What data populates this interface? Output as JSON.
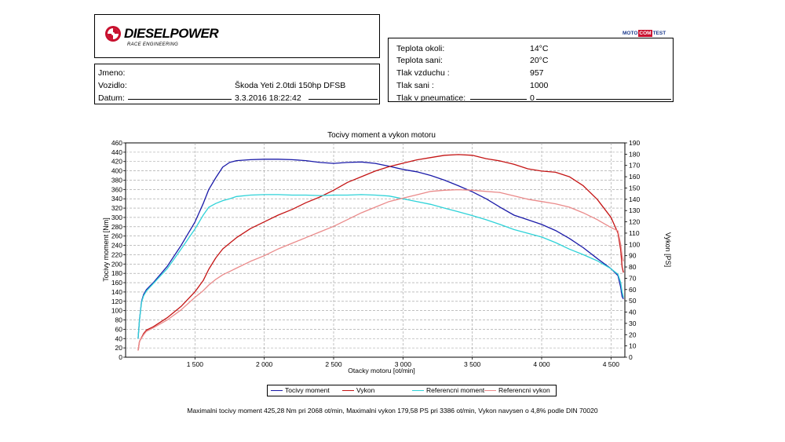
{
  "brand": {
    "name": "DIESELPOWER",
    "tagline": "RACE ENGINEERING",
    "badge": [
      "MOTO",
      "COM",
      "TEST"
    ]
  },
  "info": {
    "rows": [
      {
        "label": "Jmeno:",
        "value": ""
      },
      {
        "label": "Vozidlo:",
        "value": "Škoda Yeti 2.0tdi 150hp DFSB"
      },
      {
        "label": "Datum:",
        "value": "3.3.2016 18:22:42"
      }
    ]
  },
  "conditions": {
    "rows": [
      {
        "label": "Teplota okoli:",
        "value": "14°C"
      },
      {
        "label": "Teplota sani:",
        "value": "20°C"
      },
      {
        "label": "Tlak vzduchu :",
        "value": "957"
      },
      {
        "label": "Tlak sani :",
        "value": "1000"
      },
      {
        "label": "Tlak v pneumatice:",
        "value": "0"
      }
    ]
  },
  "chart_data": {
    "type": "line",
    "title": "Tocivy moment a vykon motoru",
    "xlabel": "Otacky motoru [ot/min]",
    "ylabel_left": "Tocivy moment [Nm]",
    "ylabel_right": "Vykon [PS]",
    "xlim": [
      1000,
      4600
    ],
    "ylim_left": [
      0,
      460
    ],
    "ylim_right": [
      0,
      190
    ],
    "x_ticks": [
      1500,
      2000,
      2500,
      3000,
      3500,
      4000,
      4500
    ],
    "x_tick_labels": [
      "1 500",
      "2 000",
      "2 500",
      "3 000",
      "3 500",
      "4 000",
      "4 500"
    ],
    "y_left_ticks": [
      0,
      20,
      40,
      60,
      80,
      100,
      120,
      140,
      160,
      180,
      200,
      220,
      240,
      260,
      280,
      300,
      320,
      340,
      360,
      380,
      400,
      420,
      440,
      460
    ],
    "y_right_ticks": [
      0,
      10,
      20,
      30,
      40,
      50,
      60,
      70,
      80,
      90,
      100,
      110,
      120,
      130,
      140,
      150,
      160,
      170,
      180,
      190
    ],
    "grid": true,
    "legend_position": "bottom",
    "series": [
      {
        "name": "Tocivy moment",
        "axis": "left",
        "color": "#1a1aa8",
        "x": [
          1090,
          1100,
          1115,
          1130,
          1150,
          1200,
          1300,
          1400,
          1500,
          1560,
          1600,
          1650,
          1700,
          1750,
          1800,
          1900,
          2000,
          2100,
          2200,
          2300,
          2400,
          2500,
          2600,
          2700,
          2800,
          2900,
          3000,
          3100,
          3200,
          3300,
          3400,
          3500,
          3600,
          3700,
          3800,
          3900,
          4000,
          4100,
          4200,
          4300,
          4400,
          4500,
          4550,
          4570,
          4580,
          4590
        ],
        "y": [
          40,
          80,
          120,
          135,
          145,
          160,
          195,
          240,
          290,
          330,
          360,
          385,
          408,
          418,
          422,
          424,
          425,
          425,
          424,
          422,
          418,
          416,
          418,
          419,
          416,
          410,
          403,
          398,
          390,
          380,
          368,
          355,
          340,
          322,
          305,
          295,
          285,
          272,
          255,
          235,
          212,
          190,
          175,
          150,
          130,
          125
        ]
      },
      {
        "name": "Vykon",
        "axis": "right",
        "color": "#c41414",
        "x": [
          1090,
          1100,
          1130,
          1150,
          1200,
          1300,
          1400,
          1500,
          1560,
          1600,
          1650,
          1700,
          1750,
          1800,
          1900,
          2000,
          2100,
          2200,
          2300,
          2400,
          2500,
          2600,
          2700,
          2800,
          2900,
          3000,
          3100,
          3200,
          3300,
          3400,
          3500,
          3600,
          3700,
          3800,
          3900,
          4000,
          4100,
          4200,
          4300,
          4400,
          4500,
          4550,
          4570,
          4580,
          4590
        ],
        "y": [
          6,
          14,
          21,
          24,
          27,
          35,
          45,
          58,
          68,
          78,
          88,
          96,
          101,
          106,
          114,
          120,
          126,
          131,
          137,
          142,
          148,
          155,
          160,
          165,
          169,
          172,
          175,
          177,
          179,
          179.6,
          179,
          176,
          174,
          171,
          167,
          165,
          164,
          160,
          152,
          140,
          124,
          110,
          95,
          80,
          75
        ]
      },
      {
        "name": "Referencni moment",
        "axis": "left",
        "color": "#2ed2d8",
        "x": [
          1090,
          1100,
          1115,
          1130,
          1150,
          1200,
          1300,
          1400,
          1500,
          1560,
          1600,
          1650,
          1700,
          1750,
          1800,
          1900,
          2000,
          2100,
          2200,
          2300,
          2400,
          2500,
          2600,
          2700,
          2800,
          2900,
          3000,
          3100,
          3200,
          3300,
          3400,
          3500,
          3600,
          3700,
          3800,
          3900,
          4000,
          4100,
          4200,
          4300,
          4400,
          4500,
          4550,
          4570,
          4580,
          4590
        ],
        "y": [
          40,
          80,
          118,
          132,
          142,
          158,
          190,
          232,
          275,
          305,
          322,
          330,
          336,
          340,
          345,
          348,
          349,
          349,
          348,
          348,
          347,
          348,
          348,
          349,
          348,
          346,
          340,
          334,
          328,
          320,
          312,
          304,
          295,
          285,
          274,
          266,
          258,
          246,
          232,
          220,
          207,
          190,
          178,
          160,
          140,
          128
        ]
      },
      {
        "name": "Referencni vykon",
        "axis": "right",
        "color": "#ea8a8a",
        "x": [
          1090,
          1100,
          1130,
          1150,
          1200,
          1300,
          1400,
          1500,
          1560,
          1600,
          1650,
          1700,
          1750,
          1800,
          1900,
          2000,
          2100,
          2200,
          2300,
          2400,
          2500,
          2600,
          2700,
          2800,
          2900,
          3000,
          3100,
          3200,
          3300,
          3400,
          3500,
          3600,
          3700,
          3800,
          3900,
          4000,
          4100,
          4200,
          4300,
          4400,
          4500,
          4550,
          4570,
          4580,
          4590
        ],
        "y": [
          6,
          14,
          20,
          23,
          26,
          33,
          42,
          53,
          59,
          64,
          69,
          73,
          76,
          79,
          85,
          90,
          96,
          101,
          106,
          111,
          116,
          122,
          128,
          133,
          138,
          141,
          144,
          147,
          148,
          148.5,
          148,
          147,
          146,
          143,
          140,
          138,
          136,
          133,
          128,
          122,
          115,
          112,
          100,
          90,
          85
        ]
      }
    ]
  },
  "footer": "Maximalni tocivy moment 425,28 Nm pri 2068 ot/min,  Maximalni vykon 179,58 PS pri 3386 ot/min,  Vykon navysen o 4,8% podle DIN 70020"
}
